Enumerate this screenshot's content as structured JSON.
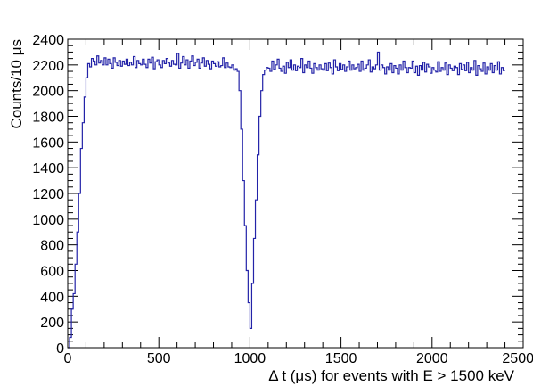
{
  "chart_data": {
    "type": "histogram",
    "title": "",
    "xlabel": "Δ t (μs) for events with E > 1500 keV",
    "ylabel": "Counts/10 μs",
    "xlim": [
      0,
      2500
    ],
    "ylim": [
      0,
      2400
    ],
    "x_ticks": [
      {
        "value": 0,
        "label": "0"
      },
      {
        "value": 500,
        "label": "500"
      },
      {
        "value": 1000,
        "label": "1000"
      },
      {
        "value": 1500,
        "label": "1500"
      },
      {
        "value": 2000,
        "label": "2000"
      },
      {
        "value": 2500,
        "label": "2500"
      }
    ],
    "y_ticks": [
      {
        "value": 0,
        "label": "0"
      },
      {
        "value": 200,
        "label": "200"
      },
      {
        "value": 400,
        "label": "400"
      },
      {
        "value": 600,
        "label": "600"
      },
      {
        "value": 800,
        "label": "800"
      },
      {
        "value": 1000,
        "label": "1000"
      },
      {
        "value": 1200,
        "label": "1200"
      },
      {
        "value": 1400,
        "label": "1400"
      },
      {
        "value": 1600,
        "label": "1600"
      },
      {
        "value": 1800,
        "label": "1800"
      },
      {
        "value": 2000,
        "label": "2000"
      },
      {
        "value": 2200,
        "label": "2200"
      },
      {
        "value": 2400,
        "label": "2400"
      }
    ],
    "x_minor_step": 100,
    "y_minor_step": 50,
    "bin_width": 10,
    "line_color": "#2323a8",
    "series": [
      {
        "x_start": 0,
        "values": [
          0,
          80,
          300,
          420,
          650,
          900,
          1200,
          1550,
          1750,
          1950,
          2100,
          2210,
          2185,
          2250,
          2230,
          2200,
          2270,
          2215,
          2235,
          2200,
          2255,
          2200,
          2245,
          2210,
          2175,
          2255,
          2220,
          2195,
          2235,
          2190,
          2230,
          2205,
          2245,
          2195,
          2220,
          2200,
          2265,
          2180,
          2235,
          2210,
          2200,
          2245,
          2205,
          2180,
          2245,
          2215,
          2260,
          2170,
          2225,
          2240,
          2200,
          2180,
          2235,
          2210,
          2250,
          2215,
          2190,
          2235,
          2205,
          2200,
          2290,
          2175,
          2215,
          2265,
          2200,
          2240,
          2175,
          2230,
          2270,
          2195,
          2220,
          2245,
          2175,
          2215,
          2255,
          2190,
          2235,
          2205,
          2170,
          2230,
          2210,
          2190,
          2225,
          2185,
          2195,
          2255,
          2180,
          2215,
          2185,
          2180,
          2200,
          2160,
          2170,
          2150,
          2000,
          1700,
          1300,
          950,
          600,
          350,
          150,
          500,
          850,
          1150,
          1500,
          1800,
          2000,
          2125,
          2160,
          2180,
          2175,
          2150,
          2230,
          2165,
          2200,
          2245,
          2175,
          2150,
          2190,
          2135,
          2220,
          2180,
          2240,
          2160,
          2200,
          2155,
          2190,
          2180,
          2250,
          2140,
          2200,
          2180,
          2230,
          2175,
          2135,
          2210,
          2180,
          2160,
          2200,
          2170,
          2160,
          2210,
          2155,
          2215,
          2180,
          2130,
          2240,
          2185,
          2155,
          2210,
          2165,
          2200,
          2150,
          2185,
          2230,
          2160,
          2200,
          2170,
          2180,
          2205,
          2150,
          2230,
          2160,
          2175,
          2200,
          2240,
          2145,
          2185,
          2170,
          2200,
          2300,
          2160,
          2200,
          2180,
          2130,
          2185,
          2160,
          2210,
          2140,
          2195,
          2175,
          2130,
          2200,
          2160,
          2230,
          2180,
          2140,
          2180,
          2175,
          2230,
          2140,
          2190,
          2120,
          2195,
          2160,
          2220,
          2145,
          2205,
          2185,
          2135,
          2180,
          2160,
          2145,
          2225,
          2150,
          2180,
          2160,
          2215,
          2125,
          2200,
          2175,
          2155,
          2190,
          2180,
          2125,
          2210,
          2165,
          2200,
          2155,
          2220,
          2140,
          2180,
          2160,
          2235,
          2120,
          2195,
          2170,
          2150,
          2215,
          2130,
          2185,
          2160,
          2210,
          2140,
          2195,
          2160,
          2225,
          2130,
          2180,
          2155
        ]
      }
    ]
  }
}
